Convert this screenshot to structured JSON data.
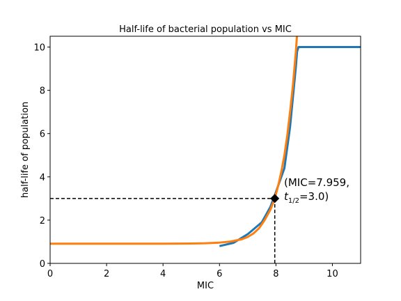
{
  "chart_data": {
    "type": "line",
    "title": "Half-life of bacterial population vs MIC",
    "xlabel": "MIC",
    "ylabel": "half-life of population",
    "xlim": [
      0,
      11
    ],
    "ylim": [
      0,
      10.5
    ],
    "xticks": [
      0,
      2,
      4,
      6,
      8,
      10
    ],
    "yticks": [
      0,
      2,
      4,
      6,
      8,
      10
    ],
    "grid": false,
    "series": [
      {
        "color": "#1f77b4",
        "x": [
          6.0,
          6.5,
          7.0,
          7.5,
          7.8,
          8.0,
          8.3,
          8.5,
          8.7,
          8.75,
          8.8,
          9.0,
          9.5,
          10.0,
          10.5,
          11.0
        ],
        "y": [
          0.8,
          0.95,
          1.35,
          1.9,
          2.6,
          3.3,
          4.4,
          6.3,
          9.0,
          9.8,
          10.0,
          10.0,
          10.0,
          10.0,
          10.0,
          10.0
        ]
      },
      {
        "color": "#ff7f0e",
        "x": [
          0,
          1,
          2,
          3,
          4,
          4.5,
          5,
          5.5,
          6,
          6.4,
          6.8,
          7.0,
          7.2,
          7.4,
          7.6,
          7.8,
          7.959,
          8.1,
          8.2,
          8.3,
          8.4,
          8.5,
          8.6,
          8.7,
          8.75
        ],
        "y": [
          0.91,
          0.91,
          0.91,
          0.91,
          0.91,
          0.912,
          0.918,
          0.93,
          0.96,
          1.01,
          1.12,
          1.22,
          1.38,
          1.62,
          2.0,
          2.47,
          3.0,
          3.7,
          4.3,
          5.0,
          5.9,
          7.0,
          8.2,
          9.7,
          10.6
        ]
      }
    ],
    "marker": {
      "x": 7.959,
      "y": 3.0,
      "shape": "diamond",
      "color": "#000000"
    },
    "reference_lines": {
      "x": 7.959,
      "y": 3.0,
      "style": "dashed"
    },
    "annotation": {
      "line1": "(MIC=7.959,",
      "t_symbol": "t",
      "t_subscript": "1/2",
      "line2_rest": "=3.0)"
    }
  }
}
